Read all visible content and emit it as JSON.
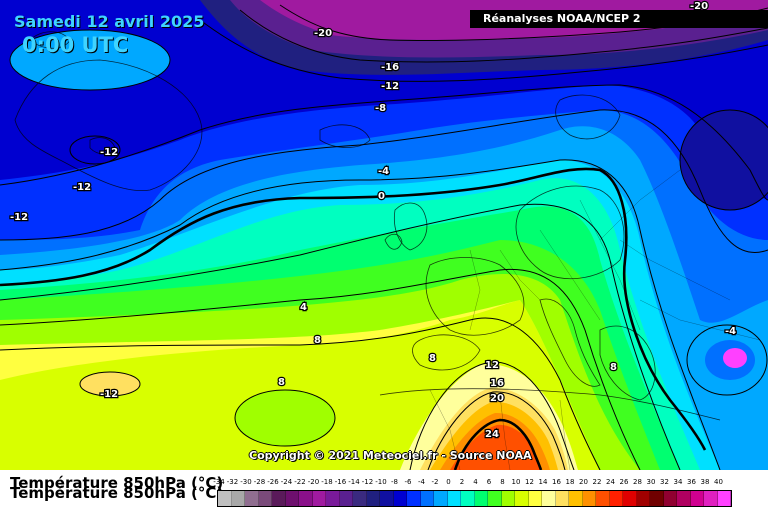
{
  "header": {
    "date": "Samedi 12 avril 2025",
    "time": "0:00 UTC",
    "source": "Réanalyses NOAA/NCEP 2"
  },
  "copyright": "Copyright © 2021 Meteociel.fr - Source NOAA",
  "legend": {
    "variable": "Température 850hPa (°C)",
    "scale": [
      {
        "v": "-34",
        "c": "#c0c0c0"
      },
      {
        "v": "-32",
        "c": "#a8a8a8"
      },
      {
        "v": "-30",
        "c": "#906e90"
      },
      {
        "v": "-28",
        "c": "#7a4a7a"
      },
      {
        "v": "-26",
        "c": "#5a1a5a"
      },
      {
        "v": "-24",
        "c": "#6e0f6e"
      },
      {
        "v": "-22",
        "c": "#8a108a"
      },
      {
        "v": "-20",
        "c": "#a01aa0"
      },
      {
        "v": "-18",
        "c": "#7a1a9a"
      },
      {
        "v": "-16",
        "c": "#5a2090"
      },
      {
        "v": "-14",
        "c": "#3a2a80"
      },
      {
        "v": "-12",
        "c": "#202080"
      },
      {
        "v": "-10",
        "c": "#1010a0"
      },
      {
        "v": "-8",
        "c": "#0000d0"
      },
      {
        "v": "-6",
        "c": "#0030ff"
      },
      {
        "v": "-4",
        "c": "#0070ff"
      },
      {
        "v": "-2",
        "c": "#00a8ff"
      },
      {
        "v": "0",
        "c": "#00e0ff"
      },
      {
        "v": "2",
        "c": "#00ffc0"
      },
      {
        "v": "4",
        "c": "#00ff70"
      },
      {
        "v": "6",
        "c": "#40ff20"
      },
      {
        "v": "8",
        "c": "#a0ff00"
      },
      {
        "v": "10",
        "c": "#d8ff00"
      },
      {
        "v": "12",
        "c": "#ffff40"
      },
      {
        "v": "14",
        "c": "#ffff9c"
      },
      {
        "v": "16",
        "c": "#ffe060"
      },
      {
        "v": "18",
        "c": "#ffc000"
      },
      {
        "v": "20",
        "c": "#ff9000"
      },
      {
        "v": "22",
        "c": "#ff5000"
      },
      {
        "v": "24",
        "c": "#ff2000"
      },
      {
        "v": "26",
        "c": "#e00000"
      },
      {
        "v": "28",
        "c": "#a00000"
      },
      {
        "v": "30",
        "c": "#700000"
      },
      {
        "v": "32",
        "c": "#900030"
      },
      {
        "v": "34",
        "c": "#b00060"
      },
      {
        "v": "36",
        "c": "#d00090"
      },
      {
        "v": "38",
        "c": "#e020c0"
      },
      {
        "v": "40",
        "c": "#ff40ff"
      }
    ]
  },
  "contours": {
    "n20": "-20",
    "n16": "-16",
    "n12": "-12",
    "n8": "-8",
    "n4": "-4",
    "z0": "0",
    "p4": "4",
    "p8": "8",
    "p12": "12",
    "p16": "16",
    "p20": "20",
    "p24": "24"
  }
}
